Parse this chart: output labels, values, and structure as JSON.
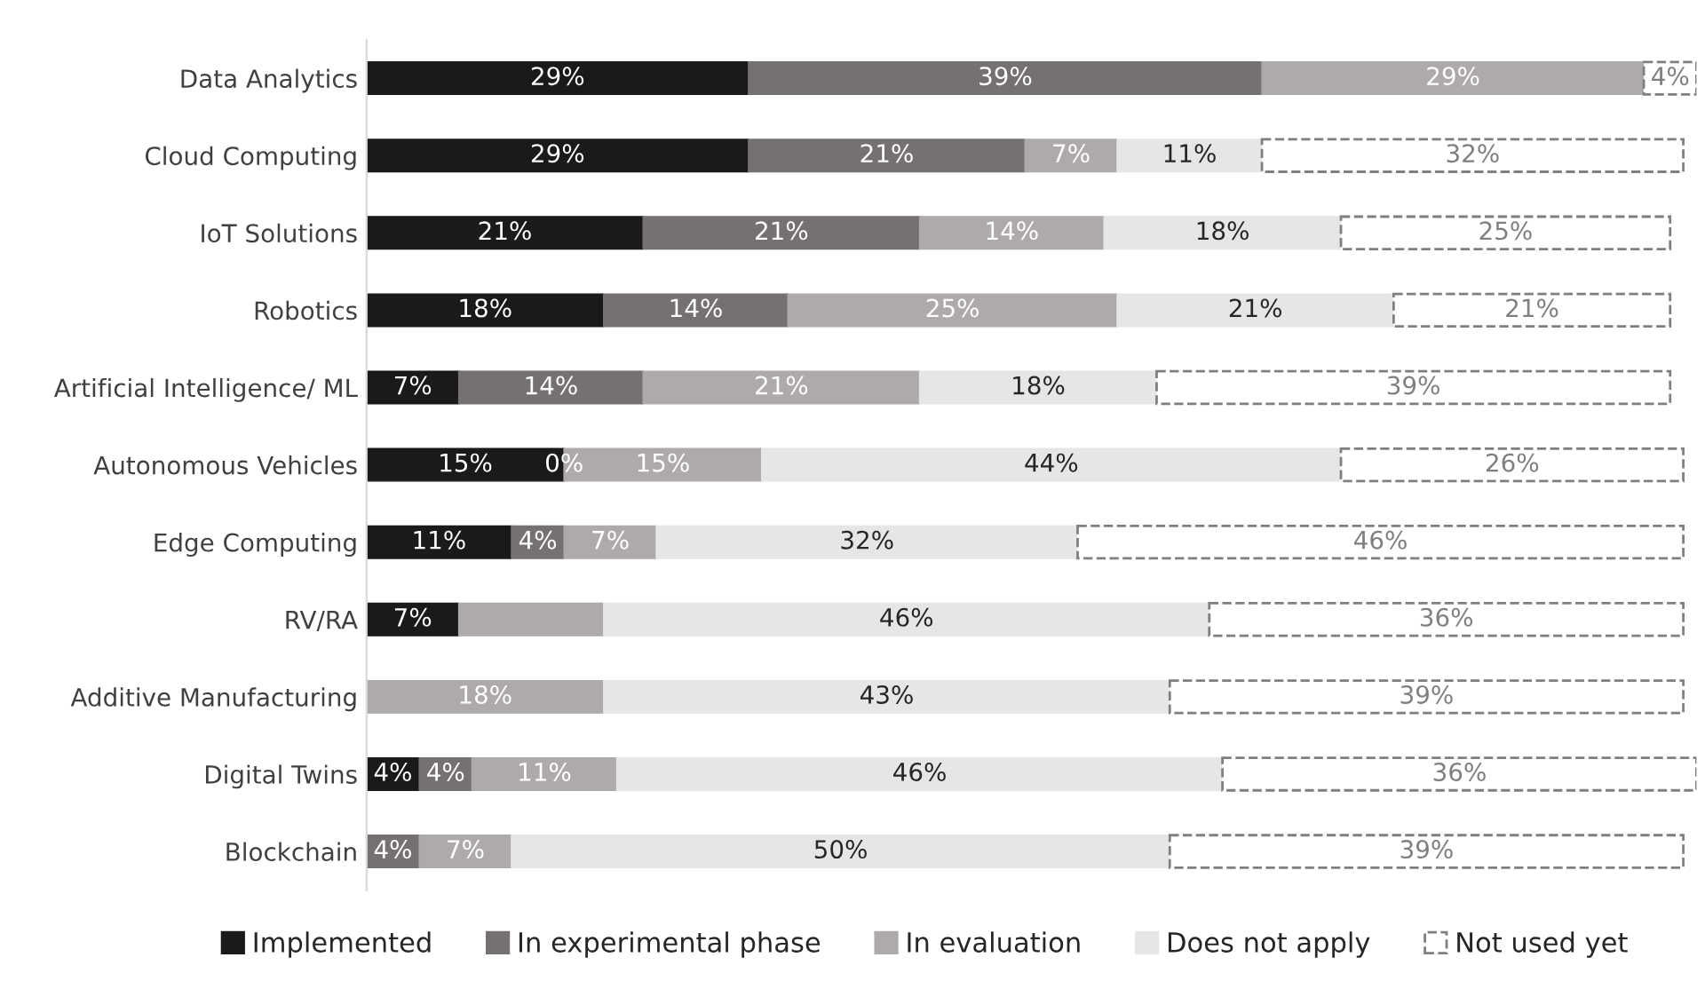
{
  "chart_data": {
    "type": "bar",
    "orientation": "horizontal",
    "stacked": true,
    "categories": [
      "Data Analytics",
      "Cloud Computing",
      "IoT Solutions",
      "Robotics",
      "Artificial Intelligence/ ML",
      "Autonomous Vehicles",
      "Edge Computing",
      "RV/RA",
      "Additive Manufacturing",
      "Digital Twins",
      "Blockchain"
    ],
    "series": [
      {
        "name": "Implemented",
        "color": "#1a1a1a",
        "values": [
          29,
          29,
          21,
          18,
          7,
          15,
          11,
          7,
          null,
          4,
          null
        ],
        "value_labels": [
          "29%",
          "29%",
          "21%",
          "18%",
          "7%",
          "15%",
          "11%",
          "7%",
          null,
          "4%",
          null
        ]
      },
      {
        "name": "In experimental phase",
        "color": "#767171",
        "values": [
          39,
          21,
          21,
          14,
          14,
          0,
          4,
          null,
          null,
          4,
          4
        ],
        "value_labels": [
          "39%",
          "21%",
          "21%",
          "14%",
          "14%",
          "0%",
          "4%",
          null,
          null,
          "4%",
          "4%"
        ]
      },
      {
        "name": "In evaluation",
        "color": "#aeaaaa",
        "values": [
          29,
          7,
          14,
          25,
          21,
          15,
          7,
          11,
          18,
          11,
          7
        ],
        "value_labels": [
          "29%",
          "7%",
          "14%",
          "25%",
          "21%",
          "15%",
          "7%",
          null,
          "18%",
          "11%",
          "7%"
        ]
      },
      {
        "name": "Does not apply",
        "color": "#e7e6e6",
        "values": [
          null,
          11,
          18,
          21,
          18,
          44,
          32,
          46,
          43,
          46,
          50
        ],
        "value_labels": [
          null,
          "11%",
          "18%",
          "21%",
          "18%",
          "44%",
          "32%",
          "46%",
          "43%",
          "46%",
          "50%"
        ]
      },
      {
        "name": "Not used yet",
        "color": "#ffffff",
        "line_style": "dashed",
        "values": [
          4,
          32,
          25,
          21,
          39,
          26,
          46,
          36,
          39,
          36,
          39
        ],
        "value_labels": [
          "4%",
          "32%",
          "25%",
          "21%",
          "39%",
          "26%",
          "46%",
          "36%",
          "39%",
          "36%",
          "39%"
        ]
      }
    ],
    "xlim": [
      0,
      101
    ],
    "tick_labels": "y",
    "grid": false,
    "legend": "bottom"
  }
}
